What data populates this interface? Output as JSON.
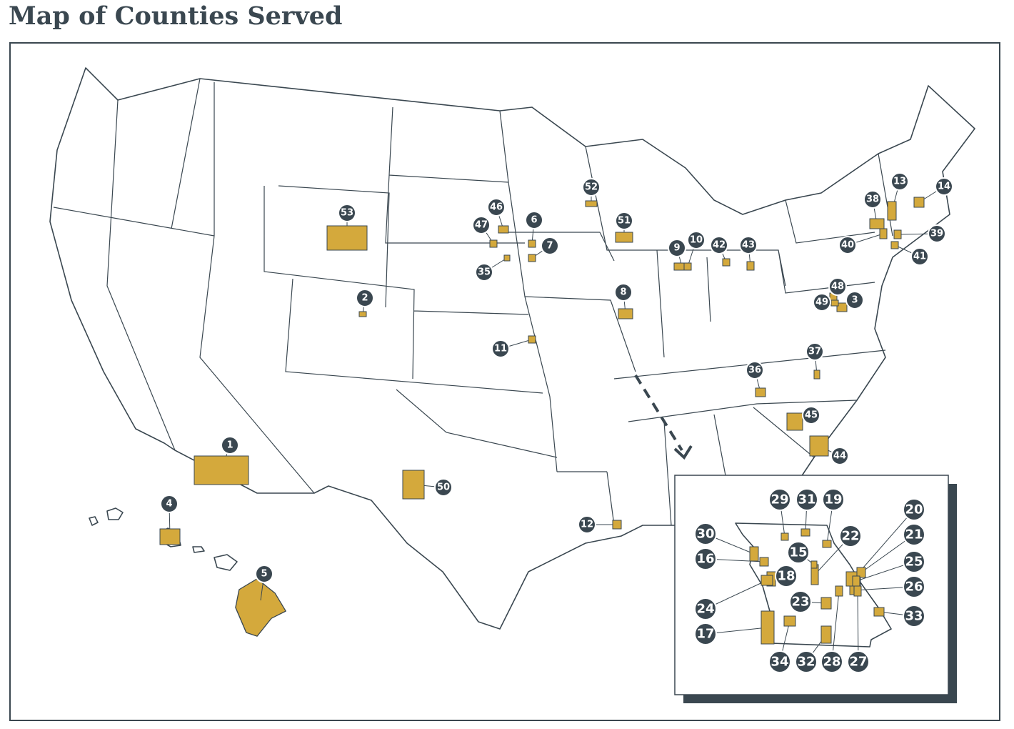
{
  "title": "Map of Counties Served",
  "markers": [
    {
      "label": "1"
    },
    {
      "label": "2"
    },
    {
      "label": "3"
    },
    {
      "label": "4"
    },
    {
      "label": "5"
    },
    {
      "label": "6"
    },
    {
      "label": "7"
    },
    {
      "label": "8"
    },
    {
      "label": "9"
    },
    {
      "label": "10"
    },
    {
      "label": "11"
    },
    {
      "label": "12"
    },
    {
      "label": "13"
    },
    {
      "label": "14"
    },
    {
      "label": "35"
    },
    {
      "label": "36"
    },
    {
      "label": "37"
    },
    {
      "label": "38"
    },
    {
      "label": "39"
    },
    {
      "label": "40"
    },
    {
      "label": "41"
    },
    {
      "label": "42"
    },
    {
      "label": "43"
    },
    {
      "label": "44"
    },
    {
      "label": "45"
    },
    {
      "label": "46"
    },
    {
      "label": "47"
    },
    {
      "label": "48"
    },
    {
      "label": "49"
    },
    {
      "label": "50"
    },
    {
      "label": "51"
    },
    {
      "label": "52"
    },
    {
      "label": "53"
    }
  ],
  "inset": {
    "markers": [
      {
        "label": "29"
      },
      {
        "label": "31"
      },
      {
        "label": "19"
      },
      {
        "label": "20"
      },
      {
        "label": "21"
      },
      {
        "label": "22"
      },
      {
        "label": "30"
      },
      {
        "label": "15"
      },
      {
        "label": "16"
      },
      {
        "label": "18"
      },
      {
        "label": "25"
      },
      {
        "label": "26"
      },
      {
        "label": "23"
      },
      {
        "label": "24"
      },
      {
        "label": "33"
      },
      {
        "label": "17"
      },
      {
        "label": "34"
      },
      {
        "label": "32"
      },
      {
        "label": "28"
      },
      {
        "label": "27"
      }
    ]
  }
}
